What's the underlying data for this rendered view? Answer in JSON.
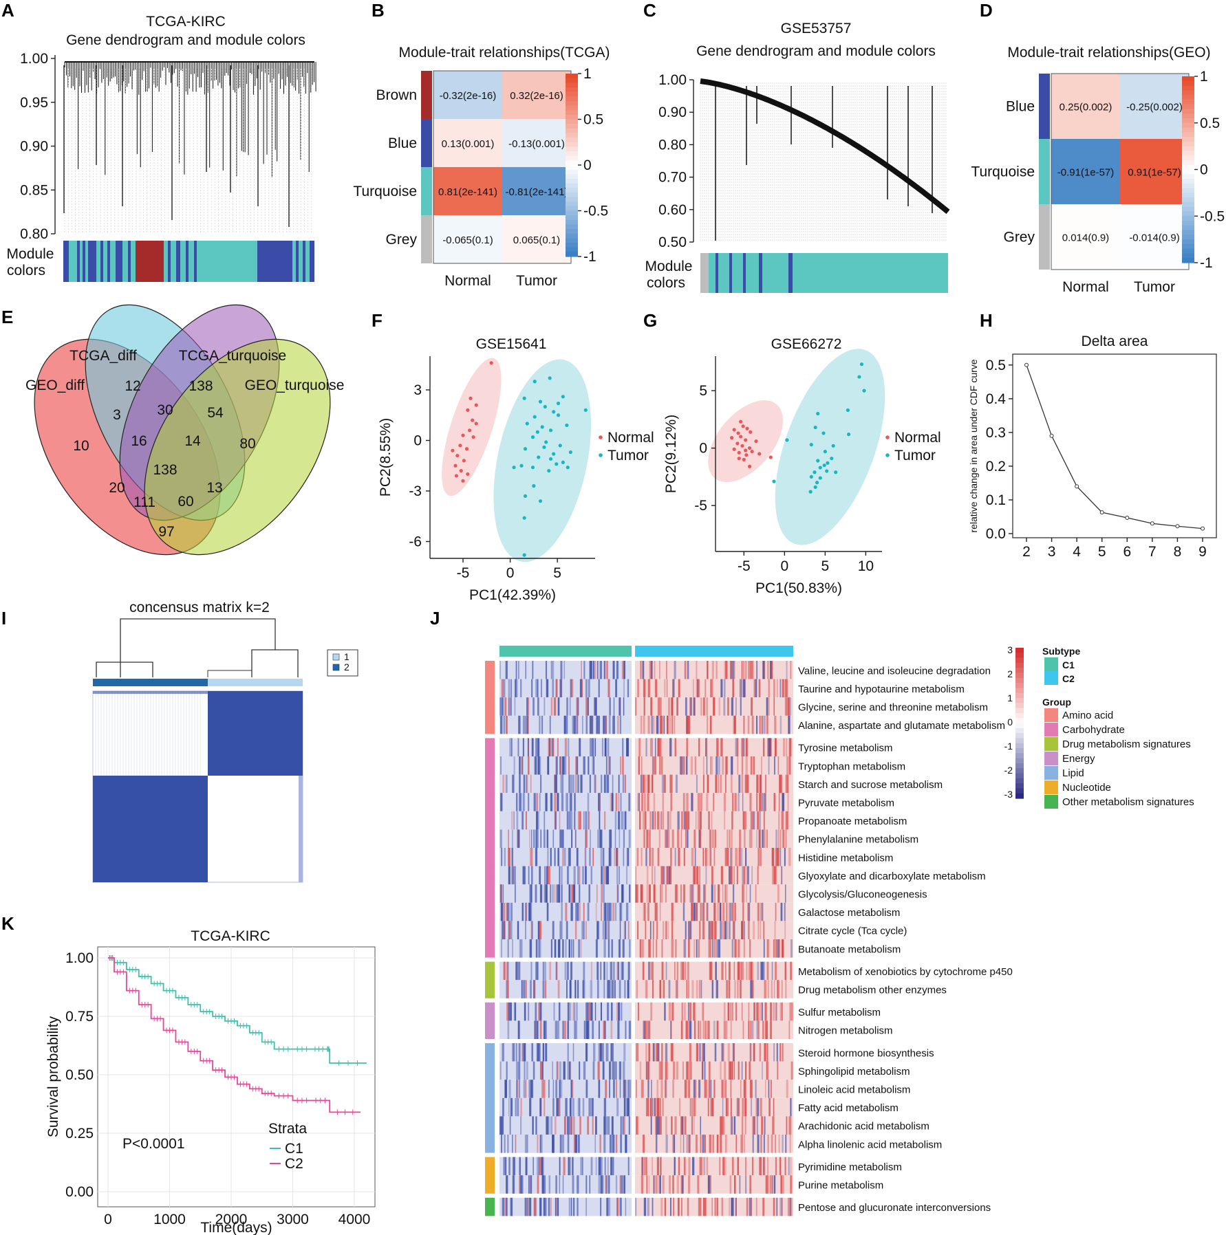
{
  "panel_letters": [
    "A",
    "B",
    "C",
    "D",
    "E",
    "F",
    "G",
    "H",
    "I",
    "J",
    "K"
  ],
  "colors": {
    "brown": "#a52a2a",
    "blue": "#3a4ba8",
    "turquoise": "#5cc6c0",
    "grey": "#bdbdbd",
    "red": "#e84a2a",
    "lightblue": "#b5d8f0",
    "normal": "#e8575a",
    "tumor": "#19b5c0",
    "c1": "#3fbfa8",
    "c2": "#e8459a",
    "subtype_c1": "#4fc4ad",
    "subtype_c2": "#3ec6ef"
  },
  "chart_data": [
    {
      "id": "A",
      "type": "dendrogram",
      "title_line1": "TCGA-KIRC",
      "title_line2": "Gene dendrogram and module colors",
      "yticks": [
        "1.00",
        "0.95",
        "0.90",
        "0.85",
        "0.80"
      ],
      "ylim": [
        0.8,
        1.0
      ],
      "color_bar_label_line1": "Module",
      "color_bar_label_line2": "colors",
      "module_order": [
        "turquoise",
        "blue",
        "brown",
        "turquoise",
        "blue",
        "turquoise"
      ]
    },
    {
      "id": "B",
      "type": "heatmap",
      "title": "Module-trait relationships(TCGA)",
      "rows": [
        "Brown",
        "Blue",
        "Turquoise",
        "Grey"
      ],
      "row_colors": [
        "#a52a2a",
        "#3a4ba8",
        "#5cc6c0",
        "#bdbdbd"
      ],
      "cols": [
        "Normal",
        "Tumor"
      ],
      "values": [
        [
          -0.32,
          0.32
        ],
        [
          0.13,
          -0.13
        ],
        [
          0.81,
          -0.81
        ],
        [
          -0.065,
          0.065
        ]
      ],
      "labels": [
        [
          "-0.32(2e-16)",
          "0.32(2e-16)"
        ],
        [
          "0.13(0.001)",
          "-0.13(0.001)"
        ],
        [
          "0.81(2e-141)",
          "-0.81(2e-141)"
        ],
        [
          "-0.065(0.1)",
          "0.065(0.1)"
        ]
      ],
      "scale_ticks": [
        "1",
        "0.5",
        "0",
        "-0.5",
        "-1"
      ]
    },
    {
      "id": "C",
      "type": "dendrogram",
      "title_line1": "GSE53757",
      "title_line2": "Gene dendrogram and module colors",
      "yticks": [
        "1.00",
        "0.90",
        "0.80",
        "0.70",
        "0.60",
        "0.50"
      ],
      "ylim": [
        0.5,
        1.0
      ],
      "color_bar_label_line1": "Module",
      "color_bar_label_line2": "colors",
      "module_order": [
        "grey",
        "turquoise",
        "blue",
        "turquoise",
        "blue",
        "turquoise"
      ]
    },
    {
      "id": "D",
      "type": "heatmap",
      "title": "Module-trait relationships(GEO)",
      "rows": [
        "Blue",
        "Turquoise",
        "Grey"
      ],
      "row_colors": [
        "#3a4ba8",
        "#5cc6c0",
        "#bdbdbd"
      ],
      "cols": [
        "Normal",
        "Tumor"
      ],
      "values": [
        [
          0.25,
          -0.25
        ],
        [
          -0.91,
          0.91
        ],
        [
          0.014,
          -0.014
        ]
      ],
      "labels": [
        [
          "0.25(0.002)",
          "-0.25(0.002)"
        ],
        [
          "-0.91(1e-57)",
          "0.91(1e-57)"
        ],
        [
          "0.014(0.9)",
          "-0.014(0.9)"
        ]
      ],
      "scale_ticks": [
        "1",
        "0.5",
        "0",
        "-0.5",
        "-1"
      ]
    },
    {
      "id": "E",
      "type": "venn",
      "sets": [
        {
          "name": "GEO_diff",
          "color": "#f06a6a"
        },
        {
          "name": "TCGA_diff",
          "color": "#6fcbe0"
        },
        {
          "name": "TCGA_turquoise",
          "color": "#9b59b6"
        },
        {
          "name": "GEO_turquoise",
          "color": "#b5d337"
        }
      ],
      "regions": [
        "10",
        "12",
        "138",
        "80",
        "3",
        "30",
        "54",
        "16",
        "14",
        "138",
        "20",
        "111",
        "60",
        "13",
        "97"
      ]
    },
    {
      "id": "F",
      "type": "scatter",
      "title": "GSE15641",
      "xlabel": "PC1(42.39%)",
      "ylabel": "PC2(8.55%)",
      "xlim": [
        -8.5,
        9
      ],
      "ylim": [
        -7,
        5
      ],
      "xticks": [
        -5,
        0,
        5
      ],
      "yticks": [
        3,
        0,
        -3,
        -6
      ],
      "legend": [
        "Normal",
        "Tumor"
      ],
      "series": [
        {
          "name": "Normal",
          "points": [
            [
              -2,
              4.6
            ],
            [
              -4.2,
              2.5
            ],
            [
              -3.6,
              2.1
            ],
            [
              -4.5,
              1.8
            ],
            [
              -4,
              1.2
            ],
            [
              -3.6,
              1
            ],
            [
              -4.3,
              0.6
            ],
            [
              -5,
              0.3
            ],
            [
              -3.9,
              0.2
            ],
            [
              -5.3,
              -0.3
            ],
            [
              -4.6,
              -0.5
            ],
            [
              -6.1,
              -0.6
            ],
            [
              -5.6,
              -0.9
            ],
            [
              -4.9,
              -1.2
            ],
            [
              -5.8,
              -1.5
            ],
            [
              -5.2,
              -1.8
            ],
            [
              -4.5,
              -2
            ],
            [
              -5.7,
              -2.1
            ],
            [
              -5,
              -2.4
            ]
          ]
        },
        {
          "name": "Tumor",
          "points": [
            [
              2.6,
              3.5
            ],
            [
              4.2,
              3.7
            ],
            [
              1.5,
              2.5
            ],
            [
              3.2,
              2.3
            ],
            [
              5.6,
              2.6
            ],
            [
              3.7,
              2
            ],
            [
              4.6,
              1.7
            ],
            [
              2.6,
              1.4
            ],
            [
              5.1,
              1.5
            ],
            [
              8,
              1.8
            ],
            [
              1.8,
              1
            ],
            [
              3.4,
              0.8
            ],
            [
              4.3,
              0.6
            ],
            [
              6,
              0.9
            ],
            [
              2.4,
              0.2
            ],
            [
              3.8,
              -0.1
            ],
            [
              5.3,
              -0.3
            ],
            [
              1.6,
              -0.5
            ],
            [
              4.6,
              -0.8
            ],
            [
              6.4,
              -0.7
            ],
            [
              3,
              -1
            ],
            [
              5.6,
              -1.3
            ],
            [
              1.2,
              -1.5
            ],
            [
              2.4,
              -1.6
            ],
            [
              4.1,
              -1.8
            ],
            [
              6.1,
              -1.6
            ],
            [
              4.9,
              -1.4
            ],
            [
              0.4,
              -1.6
            ],
            [
              2.5,
              -2.7
            ],
            [
              1.6,
              -3.3
            ],
            [
              3.2,
              -3.6
            ],
            [
              1.5,
              -4.6
            ],
            [
              1.5,
              -6.8
            ],
            [
              3.6,
              -0.4
            ],
            [
              2.9,
              0.5
            ],
            [
              5.1,
              2.2
            ],
            [
              4.3,
              -1.1
            ]
          ]
        }
      ]
    },
    {
      "id": "G",
      "type": "scatter",
      "title": "GSE66272",
      "xlabel": "PC1(50.83%)",
      "ylabel": "PC2(9.12%)",
      "xlim": [
        -8.5,
        12
      ],
      "ylim": [
        -9,
        8
      ],
      "xticks": [
        -5,
        0,
        5,
        10
      ],
      "yticks": [
        5,
        0,
        -5
      ],
      "legend": [
        "Normal",
        "Tumor"
      ],
      "series": [
        {
          "name": "Normal",
          "points": [
            [
              -5.4,
              2.3
            ],
            [
              -5.1,
              1.9
            ],
            [
              -4.6,
              1.7
            ],
            [
              -6.2,
              1.6
            ],
            [
              -5.7,
              1.3
            ],
            [
              -4.2,
              1.4
            ],
            [
              -5.4,
              1
            ],
            [
              -6.5,
              0.9
            ],
            [
              -4.8,
              0.7
            ],
            [
              -5.8,
              0.4
            ],
            [
              -3.5,
              0.6
            ],
            [
              -5.2,
              0.2
            ],
            [
              -6.2,
              -0.1
            ],
            [
              -4.3,
              0
            ],
            [
              -4,
              -0.3
            ],
            [
              -5.6,
              -0.4
            ],
            [
              -4.7,
              -0.6
            ],
            [
              -3.1,
              -0.5
            ],
            [
              -5,
              -1
            ],
            [
              -1.7,
              -0.8
            ],
            [
              -4.3,
              -1.6
            ],
            [
              -5.6,
              -0.9
            ],
            [
              -4.8,
              -0.2
            ]
          ]
        },
        {
          "name": "Tumor",
          "points": [
            [
              9.5,
              7.3
            ],
            [
              9.8,
              5
            ],
            [
              9.2,
              6.2
            ],
            [
              7.8,
              3.3
            ],
            [
              4.1,
              3
            ],
            [
              3.8,
              1.8
            ],
            [
              7.9,
              1.2
            ],
            [
              4.8,
              1.3
            ],
            [
              0.3,
              0.7
            ],
            [
              3.3,
              0.3
            ],
            [
              6,
              0.2
            ],
            [
              5,
              -0.3
            ],
            [
              4.1,
              -1.1
            ],
            [
              5.8,
              -0.9
            ],
            [
              4.4,
              -1.7
            ],
            [
              3.7,
              -2.1
            ],
            [
              5.2,
              -2
            ],
            [
              4.9,
              -1.5
            ],
            [
              6.3,
              -2.1
            ],
            [
              3.3,
              -2.5
            ],
            [
              4.4,
              -2.6
            ],
            [
              3.8,
              -3.4
            ],
            [
              3.2,
              -3.8
            ],
            [
              -1.3,
              -2.9
            ],
            [
              4,
              -3
            ],
            [
              5.3,
              -1.3
            ]
          ]
        }
      ]
    },
    {
      "id": "H",
      "type": "line",
      "title": "Delta area",
      "ylabel": "relative change in area under CDF curve",
      "x": [
        2,
        3,
        4,
        5,
        6,
        7,
        8,
        9
      ],
      "y": [
        0.5,
        0.29,
        0.14,
        0.063,
        0.047,
        0.03,
        0.022,
        0.015
      ],
      "ylim": [
        0,
        0.52
      ],
      "yticks": [
        "0.5",
        "0.4",
        "0.3",
        "0.2",
        "0.1",
        "0.0"
      ]
    },
    {
      "id": "I",
      "type": "heatmap",
      "title": "concensus matrix k=2",
      "legend": [
        "1",
        "2"
      ],
      "cluster_colors": [
        "#b5d8f0",
        "#2068a8"
      ]
    },
    {
      "id": "J",
      "type": "heatmap",
      "subtype_legend_title": "Subtype",
      "subtypes": [
        "C1",
        "C2"
      ],
      "group_legend_title": "Group",
      "groups": [
        {
          "name": "Amino acid",
          "color": "#f3867d"
        },
        {
          "name": "Carbohydrate",
          "color": "#e47ab3"
        },
        {
          "name": "Drug metabolism signatures",
          "color": "#a8c43b"
        },
        {
          "name": "Energy",
          "color": "#c88fc8"
        },
        {
          "name": "Lipid",
          "color": "#88b2e0"
        },
        {
          "name": "Nucleotide",
          "color": "#efac28"
        },
        {
          "name": "Other metabolism signatures",
          "color": "#48b450"
        }
      ],
      "scale_ticks": [
        "3",
        "2",
        "1",
        "0",
        "-1",
        "-2",
        "-3"
      ],
      "pathway_blocks": [
        {
          "group": 0,
          "rows": [
            "Valine, leucine and isoleucine degradation",
            "Taurine and hypotaurine metabolism",
            "Glycine, serine and threonine metabolism",
            "Alanine, aspartate and glutamate metabolism"
          ]
        },
        {
          "group": 1,
          "rows": [
            "Tyrosine metabolism",
            "Tryptophan metabolism",
            "Starch and sucrose metabolism",
            "Pyruvate metabolism",
            "Propanoate metabolism",
            "Phenylalanine metabolism",
            "Histidine metabolism",
            "Glyoxylate and dicarboxylate metabolism",
            "Glycolysis/Gluconeogenesis",
            "Galactose metabolism",
            "Citrate cycle (Tca cycle)",
            "Butanoate metabolism"
          ]
        },
        {
          "group": 2,
          "rows": [
            "Metabolism of xenobiotics by cytochrome p450",
            "Drug metabolism other enzymes"
          ]
        },
        {
          "group": 3,
          "rows": [
            "Sulfur metabolism",
            "Nitrogen metabolism"
          ]
        },
        {
          "group": 4,
          "rows": [
            "Steroid hormone biosynthesis",
            "Sphingolipid metabolism",
            "Linoleic acid metabolism",
            "Fatty acid metabolism",
            "Arachidonic acid metabolism",
            "Alpha linolenic acid metabolism"
          ]
        },
        {
          "group": 5,
          "rows": [
            "Pyrimidine metabolism",
            "Purine metabolism"
          ]
        },
        {
          "group": 6,
          "rows": [
            "Pentose and glucuronate interconversions"
          ]
        }
      ]
    },
    {
      "id": "K",
      "type": "line",
      "title": "TCGA-KIRC",
      "xlabel": "Time(days)",
      "ylabel": "Survival probability",
      "xticks": [
        "0",
        "1000",
        "2000",
        "3000",
        "4000"
      ],
      "yticks": [
        "1.00",
        "0.75",
        "0.50",
        "0.25",
        "0.00"
      ],
      "xlim": [
        0,
        4200
      ],
      "ylim": [
        0,
        1
      ],
      "pvalue": "P<0.0001",
      "legend_title": "Strata",
      "series": [
        {
          "name": "C1",
          "x": [
            0,
            100,
            300,
            500,
            700,
            900,
            1100,
            1300,
            1500,
            1700,
            1900,
            2100,
            2300,
            2500,
            2700,
            3000,
            3300,
            3550,
            3600,
            4200
          ],
          "y": [
            1,
            0.98,
            0.95,
            0.92,
            0.89,
            0.86,
            0.83,
            0.8,
            0.77,
            0.75,
            0.73,
            0.71,
            0.68,
            0.64,
            0.61,
            0.61,
            0.61,
            0.61,
            0.55,
            0.55
          ]
        },
        {
          "name": "C2",
          "x": [
            0,
            100,
            300,
            500,
            700,
            900,
            1100,
            1300,
            1500,
            1700,
            1900,
            2100,
            2300,
            2500,
            2700,
            3000,
            3300,
            3600,
            4100
          ],
          "y": [
            1,
            0.94,
            0.86,
            0.8,
            0.74,
            0.69,
            0.64,
            0.6,
            0.56,
            0.52,
            0.49,
            0.46,
            0.44,
            0.42,
            0.41,
            0.39,
            0.39,
            0.34,
            0.34
          ]
        }
      ]
    }
  ]
}
